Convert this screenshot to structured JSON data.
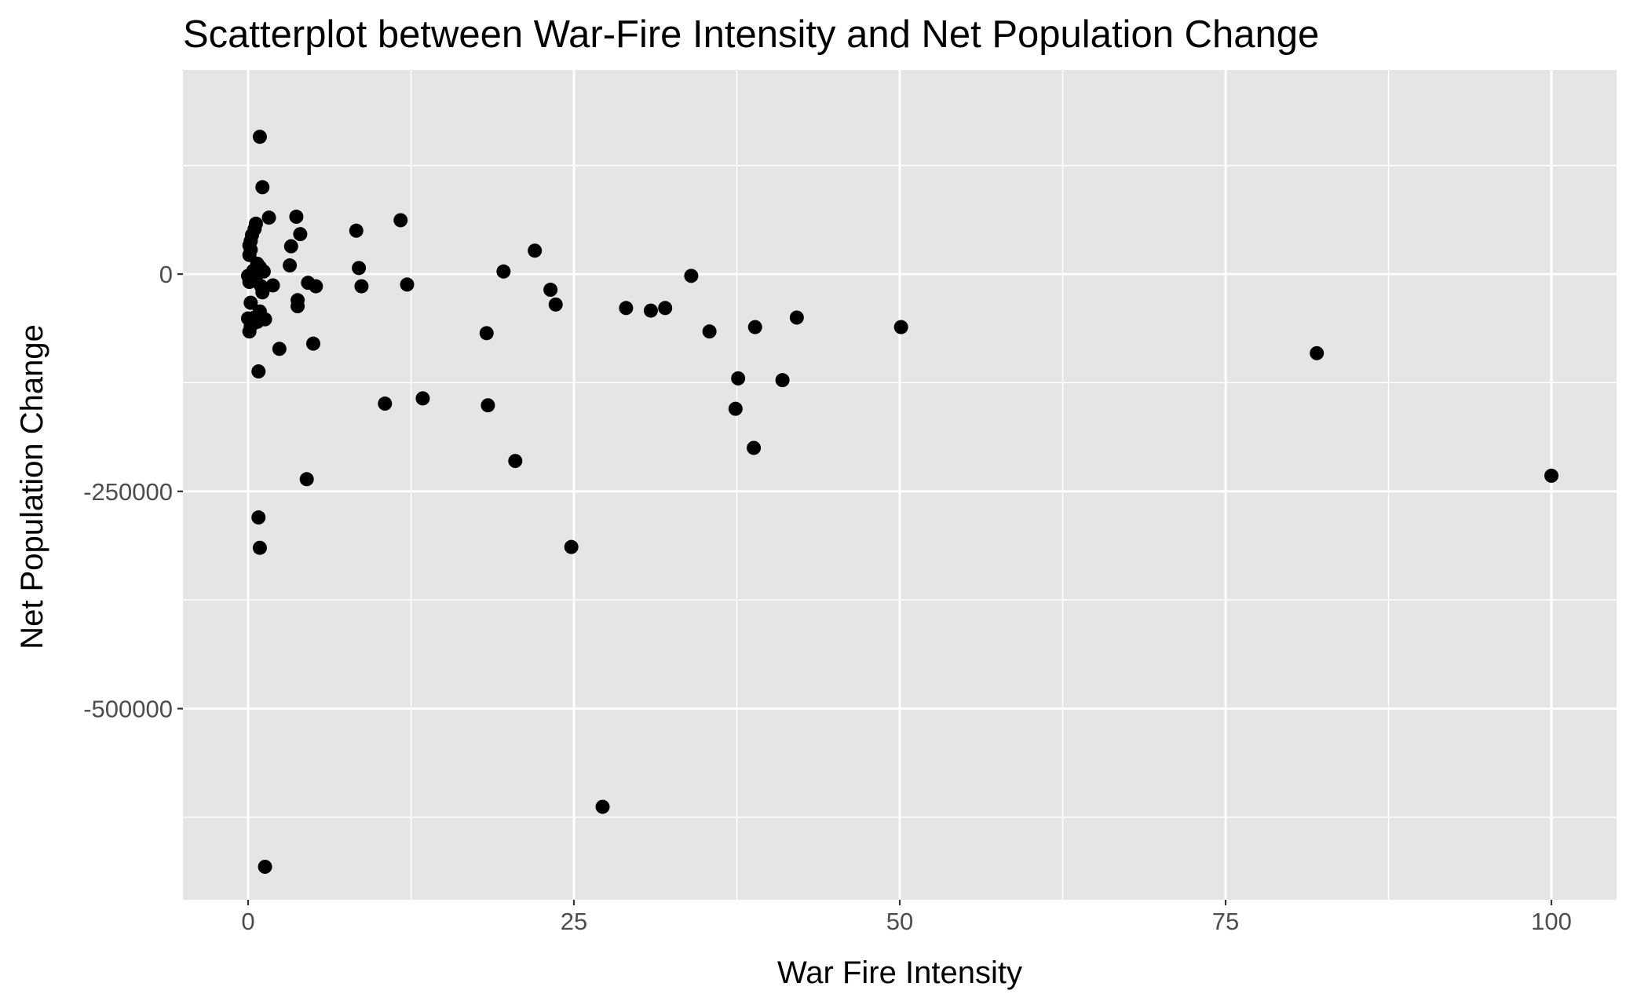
{
  "chart_data": {
    "type": "scatter",
    "title": "Scatterplot between War-Fire Intensity and Net Population Change",
    "xlabel": "War Fire Intensity",
    "ylabel": "Net Population Change",
    "xlim": [
      -5,
      105
    ],
    "ylim": [
      -720000,
      235000
    ],
    "x_ticks": [
      0,
      25,
      50,
      75,
      100
    ],
    "x_tick_labels": [
      "0",
      "25",
      "50",
      "75",
      "100"
    ],
    "y_ticks": [
      0,
      -250000,
      -500000
    ],
    "y_tick_labels": [
      "0",
      "-250000",
      "-500000"
    ],
    "grid": true,
    "legend": "none",
    "colors": {
      "panel": "#e5e5e5",
      "grid": "#ffffff",
      "point": "#000000",
      "tick_label": "#4d4d4d"
    },
    "points": [
      {
        "x": 0.9,
        "y": 158000
      },
      {
        "x": 1.1,
        "y": 100000
      },
      {
        "x": 1.6,
        "y": 65000
      },
      {
        "x": 0.6,
        "y": 58000
      },
      {
        "x": 0.5,
        "y": 52000
      },
      {
        "x": 0.3,
        "y": 45000
      },
      {
        "x": 0.2,
        "y": 38000
      },
      {
        "x": 0.1,
        "y": 33000
      },
      {
        "x": 0.2,
        "y": 28000
      },
      {
        "x": 0.1,
        "y": 22000
      },
      {
        "x": 0.7,
        "y": 12000
      },
      {
        "x": 0.9,
        "y": 8000
      },
      {
        "x": 0.4,
        "y": 4000
      },
      {
        "x": 0.8,
        "y": 2000
      },
      {
        "x": 1.2,
        "y": 3000
      },
      {
        "x": 0.0,
        "y": -2000
      },
      {
        "x": 0.3,
        "y": -5000
      },
      {
        "x": 0.1,
        "y": -9000
      },
      {
        "x": 0.6,
        "y": -8000
      },
      {
        "x": 1.0,
        "y": -14000
      },
      {
        "x": 1.9,
        "y": -13000
      },
      {
        "x": 1.1,
        "y": -21000
      },
      {
        "x": 0.2,
        "y": -33000
      },
      {
        "x": 0.9,
        "y": -43000
      },
      {
        "x": 0.0,
        "y": -51000
      },
      {
        "x": 0.5,
        "y": -50000
      },
      {
        "x": 1.3,
        "y": -52000
      },
      {
        "x": 0.7,
        "y": -55000
      },
      {
        "x": 0.2,
        "y": -60000
      },
      {
        "x": 0.1,
        "y": -66000
      },
      {
        "x": 2.4,
        "y": -86000
      },
      {
        "x": 0.8,
        "y": -112000
      },
      {
        "x": 3.7,
        "y": 66000
      },
      {
        "x": 4.0,
        "y": 46000
      },
      {
        "x": 3.3,
        "y": 32000
      },
      {
        "x": 3.2,
        "y": 10000
      },
      {
        "x": 4.6,
        "y": -10000
      },
      {
        "x": 5.2,
        "y": -14000
      },
      {
        "x": 3.8,
        "y": -30000
      },
      {
        "x": 3.8,
        "y": -37000
      },
      {
        "x": 5.0,
        "y": -80000
      },
      {
        "x": 4.5,
        "y": -236000
      },
      {
        "x": 0.8,
        "y": -280000
      },
      {
        "x": 0.9,
        "y": -315000
      },
      {
        "x": 1.3,
        "y": -682000
      },
      {
        "x": 8.3,
        "y": 50000
      },
      {
        "x": 8.5,
        "y": 7000
      },
      {
        "x": 8.7,
        "y": -14000
      },
      {
        "x": 11.7,
        "y": 62000
      },
      {
        "x": 12.2,
        "y": -12000
      },
      {
        "x": 10.5,
        "y": -149000
      },
      {
        "x": 13.4,
        "y": -143000
      },
      {
        "x": 18.3,
        "y": -68000
      },
      {
        "x": 18.4,
        "y": -151000
      },
      {
        "x": 19.6,
        "y": 3000
      },
      {
        "x": 20.5,
        "y": -215000
      },
      {
        "x": 22.0,
        "y": 27000
      },
      {
        "x": 23.2,
        "y": -18000
      },
      {
        "x": 23.6,
        "y": -35000
      },
      {
        "x": 24.8,
        "y": -314000
      },
      {
        "x": 27.2,
        "y": -613000
      },
      {
        "x": 29.0,
        "y": -39000
      },
      {
        "x": 30.9,
        "y": -42000
      },
      {
        "x": 32.0,
        "y": -39000
      },
      {
        "x": 34.0,
        "y": -2000
      },
      {
        "x": 35.4,
        "y": -66000
      },
      {
        "x": 37.6,
        "y": -120000
      },
      {
        "x": 37.4,
        "y": -155000
      },
      {
        "x": 38.9,
        "y": -61000
      },
      {
        "x": 38.8,
        "y": -200000
      },
      {
        "x": 41.0,
        "y": -122000
      },
      {
        "x": 42.1,
        "y": -50000
      },
      {
        "x": 50.1,
        "y": -61000
      },
      {
        "x": 82.0,
        "y": -91000
      },
      {
        "x": 100.0,
        "y": -232000
      }
    ]
  }
}
